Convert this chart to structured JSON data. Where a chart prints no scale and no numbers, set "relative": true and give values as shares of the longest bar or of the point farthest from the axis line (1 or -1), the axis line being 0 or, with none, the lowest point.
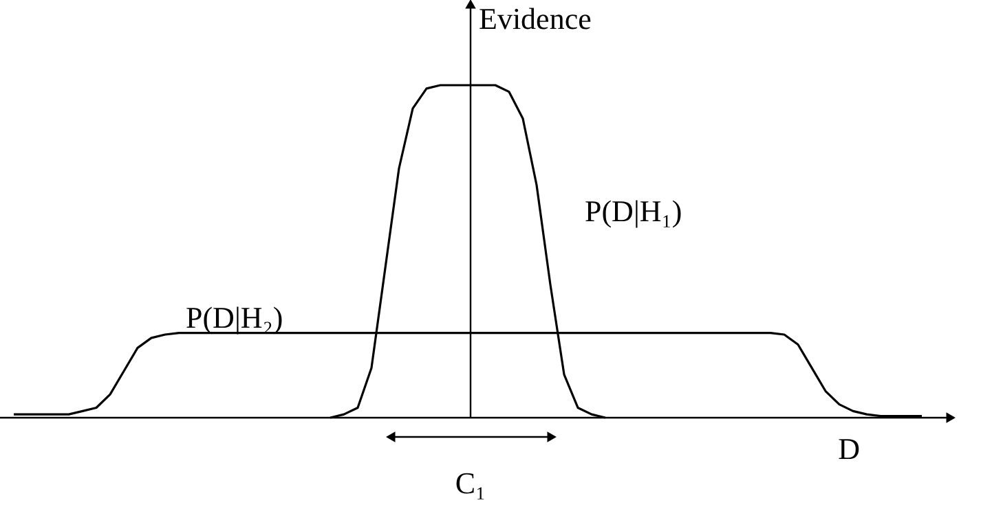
{
  "chart_data": {
    "type": "line",
    "relative": true,
    "xlabel": "D",
    "ylabel": "Evidence",
    "marker": "none",
    "line_style": "solid",
    "annotations": [
      "C₁"
    ],
    "categories": [
      null,
      null,
      null,
      null,
      null,
      null,
      null,
      null,
      null,
      null,
      null,
      null,
      null,
      null,
      null,
      null,
      null,
      null,
      null,
      null,
      null,
      null,
      null,
      null,
      null,
      null,
      null,
      null,
      null,
      null,
      null,
      null,
      null,
      null,
      null,
      null,
      null,
      null,
      null,
      null,
      null,
      null,
      null,
      null,
      null,
      null,
      null,
      null,
      null,
      null,
      null,
      null,
      null,
      null,
      null,
      null,
      null,
      null,
      null,
      null,
      null,
      null,
      null,
      null,
      null,
      null,
      null,
      null,
      null
    ],
    "series": [
      {
        "name": "P(D|H₁)",
        "color": "#000000",
        "values": [
          null,
          null,
          null,
          null,
          null,
          null,
          null,
          null,
          null,
          null,
          null,
          null,
          null,
          null,
          null,
          null,
          null,
          null,
          null,
          null,
          null,
          null,
          null,
          0,
          0.01,
          0.03,
          0.15,
          0.45,
          0.75,
          0.93,
          0.99,
          1,
          1,
          1,
          1,
          1,
          0.98,
          0.9,
          0.7,
          0.4,
          0.13,
          0.03,
          0.01,
          0,
          null,
          null,
          null,
          null,
          null,
          null,
          null,
          null,
          null,
          null,
          null,
          null,
          null,
          null,
          null,
          null,
          null,
          null,
          null,
          null,
          null,
          null,
          null,
          null,
          null
        ]
      },
      {
        "name": "P(D|H₂)",
        "color": "#000000",
        "values": [
          0.01,
          0.01,
          0.01,
          0.01,
          0.01,
          0.02,
          0.03,
          0.07,
          0.14,
          0.21,
          0.24,
          0.25,
          0.255,
          0.255,
          0.255,
          0.255,
          0.255,
          0.255,
          0.255,
          0.255,
          0.255,
          0.255,
          0.255,
          0.255,
          0.255,
          0.255,
          0.255,
          0.255,
          0.255,
          0.255,
          0.255,
          0.255,
          0.255,
          0.255,
          0.255,
          0.255,
          0.255,
          0.255,
          0.255,
          0.255,
          0.255,
          0.255,
          0.255,
          0.255,
          0.255,
          0.255,
          0.255,
          0.255,
          0.255,
          0.255,
          0.255,
          0.255,
          0.255,
          0.255,
          0.255,
          0.255,
          0.25,
          0.22,
          0.15,
          0.08,
          0.04,
          0.02,
          0.01,
          0.005,
          0.005,
          0.005,
          0.005,
          null,
          null
        ]
      }
    ]
  }
}
